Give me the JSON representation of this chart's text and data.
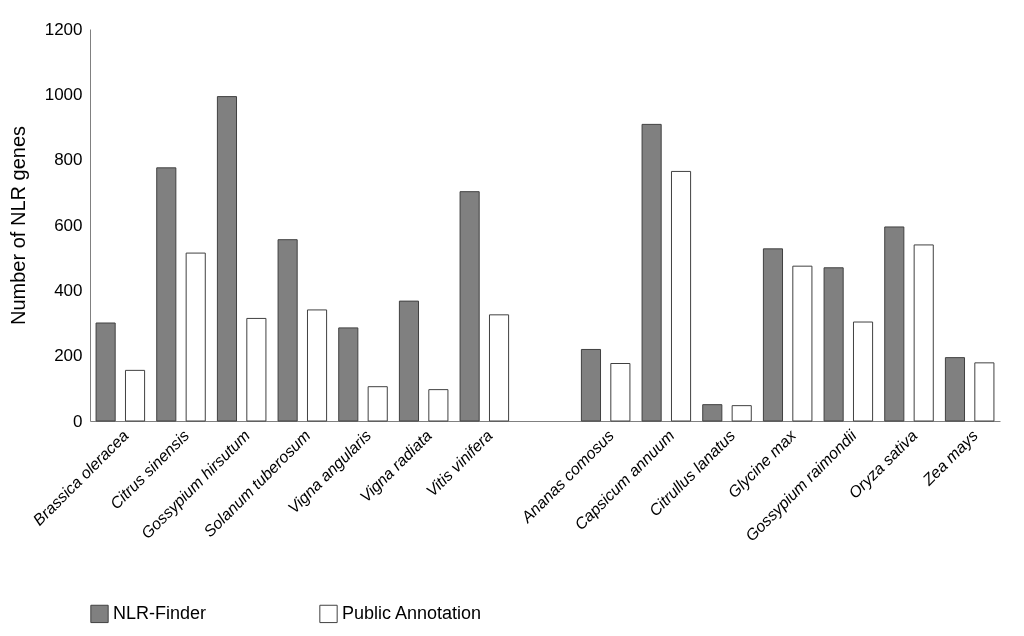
{
  "chart_data": {
    "type": "bar",
    "ylabel": "Number of NLR genes",
    "categories": [
      "Brassica oleracea",
      "Citrus sinensis",
      "Gossypium hirsutum",
      "Solanum tuberosum",
      "Vigna angularis",
      "Vigna radiata",
      "Vitis vinifera",
      null,
      "Ananas comosus",
      "Capsicum annuum",
      "Citrullus lanatus",
      "Glycine max",
      "Gossypium raimondii",
      "Oryza sativa",
      "Zea mays"
    ],
    "series": [
      {
        "name": "NLR-Finder",
        "color": "#808080",
        "values": [
          300,
          775,
          993,
          555,
          285,
          367,
          702,
          null,
          219,
          908,
          50,
          527,
          469,
          594,
          194
        ]
      },
      {
        "name": "Public Annotation",
        "color": "#ffffff",
        "values": [
          155,
          514,
          314,
          340,
          105,
          96,
          325,
          null,
          176,
          764,
          47,
          474,
          303,
          539,
          178
        ]
      }
    ],
    "ylim": [
      0,
      1200
    ],
    "yticks": [
      0,
      200,
      400,
      600,
      800,
      1000,
      1200
    ],
    "grid": false,
    "legend": "bottom"
  }
}
